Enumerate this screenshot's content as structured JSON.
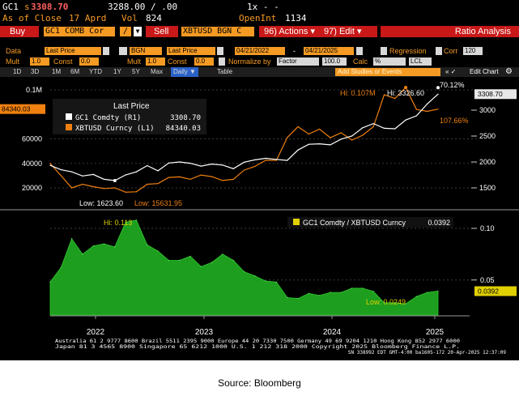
{
  "header": {
    "ticker": "GC1",
    "price_prefix": "s",
    "price": "3308.70",
    "bid_ask": "3288.00 / .00",
    "multiplier": "1x - -",
    "asof_label": "As of Close",
    "asof_date": "17 Aprd",
    "vol_label": "Vol",
    "vol": "824",
    "openint_label": "OpenInt",
    "openint": "1134"
  },
  "toolbar": {
    "buy": "Buy",
    "buy_security": "GC1 COMB Cor",
    "slash": "/",
    "sell": "Sell",
    "sell_security": "XBTUSD BGN C",
    "actions": "96) Actions ▾",
    "edit": "97) Edit ▾",
    "ratio": "Ratio Analysis"
  },
  "settings": {
    "data_label": "Data",
    "data_value": "Last Price",
    "src_value": "BGN",
    "data2_value": "Last Price",
    "date_from": "04/21/2022",
    "date_dash": "-",
    "date_to": "04/21/2025",
    "regression": "Regression",
    "corr": "Corr",
    "corr_value": "120",
    "mult_label": "Mult",
    "mult_value": "1.0",
    "const_label": "Const",
    "const_value": "0.0",
    "mult2_value": "1.0",
    "const2_value": "0.0",
    "normalize": "Normalize by",
    "normalize_value": "Factor",
    "factor_value": "100.0",
    "calc_label": "Calc",
    "calc_value": "%",
    "lcl_value": "LCL"
  },
  "tabs": {
    "items": [
      "1D",
      "3D",
      "1M",
      "6M",
      "YTD",
      "1Y",
      "5Y",
      "Max",
      "Daily ▼",
      "Table"
    ],
    "add_study": "Add Studies or Events",
    "arrows": "«  ✓",
    "edit_chart": "Edit Chart",
    "gear": "gear-icon"
  },
  "chart_data": [
    {
      "type": "line",
      "panel": "upper",
      "legend_title": "Last Price",
      "x": [
        "2022-04",
        "2022-05",
        "2022-06",
        "2022-07",
        "2022-08",
        "2022-09",
        "2022-10",
        "2022-11",
        "2022-12",
        "2023-01",
        "2023-02",
        "2023-03",
        "2023-04",
        "2023-05",
        "2023-06",
        "2023-07",
        "2023-08",
        "2023-09",
        "2023-10",
        "2023-11",
        "2023-12",
        "2024-01",
        "2024-02",
        "2024-03",
        "2024-04",
        "2024-05",
        "2024-06",
        "2024-07",
        "2024-08",
        "2024-09",
        "2024-10",
        "2024-11",
        "2024-12",
        "2025-01",
        "2025-02",
        "2025-03",
        "2025-04"
      ],
      "series": [
        {
          "name": "GC1 Comdty (R1)",
          "last": "3308.70",
          "color": "#ffffff",
          "values": [
            1935,
            1850,
            1810,
            1730,
            1760,
            1665,
            1640,
            1750,
            1810,
            1930,
            1830,
            1980,
            2000,
            1975,
            1920,
            1960,
            1940,
            1870,
            1995,
            2040,
            2070,
            2050,
            2030,
            2230,
            2340,
            2350,
            2330,
            2440,
            2500,
            2660,
            2740,
            2650,
            2640,
            2810,
            2890,
            3120,
            3308.7
          ]
        },
        {
          "name": "XBTUSD Curncy (L1)",
          "last": "84340.03",
          "color": "#f08010",
          "values": [
            40000,
            30000,
            20000,
            23000,
            21000,
            19500,
            20000,
            16500,
            16800,
            23000,
            23500,
            28500,
            29000,
            27000,
            30500,
            29200,
            26000,
            27000,
            34500,
            37500,
            42500,
            42500,
            61000,
            70000,
            64000,
            68000,
            61000,
            65000,
            59000,
            63000,
            70000,
            96000,
            93000,
            102000,
            84000,
            82500,
            84340.03
          ]
        }
      ],
      "left_axis_ticks": [
        "0.1M",
        "60000",
        "40000",
        "20000"
      ],
      "left_axis_last": "84340.03",
      "right_axis_ticks": [
        "3000",
        "2500",
        "2000",
        "1500"
      ],
      "right_axis_last": "3308.70",
      "annotations": {
        "hi_orange": "Hi: 0.107M",
        "hi_white": "Hi: 3326.60",
        "low_white": "Low: 1623.60",
        "low_orange": "Low: 15631.95",
        "pct_white": "70.12%",
        "pct_orange": "107.66%"
      }
    },
    {
      "type": "area",
      "panel": "lower",
      "legend": "GC1 Comdty / XBTUSD Curncy",
      "legend_value": "0.0392",
      "color": "#1e9e1e",
      "x": [
        "2022-04",
        "2022-05",
        "2022-06",
        "2022-07",
        "2022-08",
        "2022-09",
        "2022-10",
        "2022-11",
        "2022-12",
        "2023-01",
        "2023-02",
        "2023-03",
        "2023-04",
        "2023-05",
        "2023-06",
        "2023-07",
        "2023-08",
        "2023-09",
        "2023-10",
        "2023-11",
        "2023-12",
        "2024-01",
        "2024-02",
        "2024-03",
        "2024-04",
        "2024-05",
        "2024-06",
        "2024-07",
        "2024-08",
        "2024-09",
        "2024-10",
        "2024-11",
        "2024-12",
        "2025-01",
        "2025-02",
        "2025-03",
        "2025-04"
      ],
      "values": [
        0.048,
        0.062,
        0.09,
        0.075,
        0.083,
        0.085,
        0.082,
        0.106,
        0.108,
        0.084,
        0.078,
        0.069,
        0.069,
        0.073,
        0.063,
        0.067,
        0.075,
        0.069,
        0.058,
        0.054,
        0.049,
        0.048,
        0.033,
        0.032,
        0.037,
        0.035,
        0.038,
        0.038,
        0.042,
        0.042,
        0.039,
        0.028,
        0.028,
        0.027,
        0.034,
        0.038,
        0.0392
      ],
      "axis_ticks": [
        "0.10",
        "0.05"
      ],
      "axis_last": "0.0392",
      "annotations": {
        "hi": "Hi: 0.113",
        "low": "Low: 0.0249"
      }
    }
  ],
  "x_axis_labels": [
    "2022",
    "2023",
    "2024",
    "2025"
  ],
  "footer": {
    "line1": "Australia 61 2 9777 8600  Brazil 5511 2395 9000  Europe 44 20 7330 7500  Germany 49 69 9204 1210  Hong Kong 852 2977 6000",
    "line2": "Japan 81 3 4565 8900        Singapore 65 6212 1000        U.S. 1 212 318 2000          Copyright 2025 Bloomberg Finance L.P.",
    "line3": "SN 338992 EDT  GMT-4:00 ba1605-172 20-Apr-2025 12:37:09"
  },
  "source": "Source: Bloomberg"
}
